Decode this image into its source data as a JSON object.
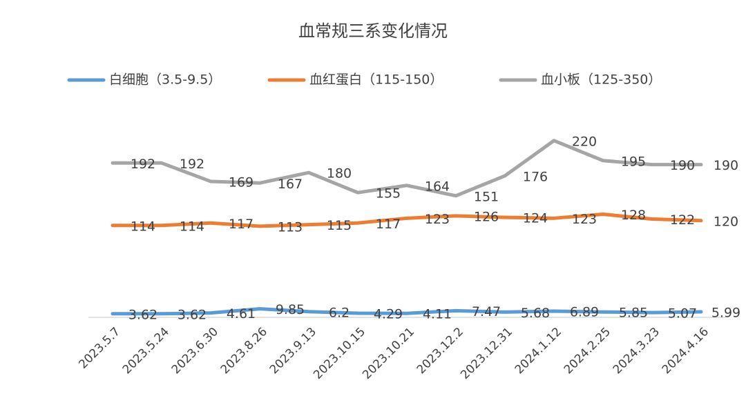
{
  "chart_data": {
    "type": "line",
    "title": "血常规三系变化情况",
    "categories": [
      "2023.5.7",
      "2023.5.24",
      "2023.6.30",
      "2023.8.26",
      "2023.9.13",
      "2023.10.15",
      "2023.10.21",
      "2023.12.2",
      "2023.12.31",
      "2024.1.12",
      "2024.2.25",
      "2024.3.23",
      "2024.4.16"
    ],
    "series": [
      {
        "name": "白细胞（3.5-9.5）",
        "color": "#5b9bd5",
        "values": [
          3.62,
          3.62,
          4.61,
          9.85,
          6.2,
          4.29,
          4.11,
          7.47,
          5.68,
          6.89,
          5.85,
          5.07,
          5.99
        ]
      },
      {
        "name": "血红蛋白（115-150）",
        "color": "#ed7d31",
        "values": [
          114,
          114,
          117,
          113,
          115,
          117,
          123,
          126,
          124,
          123,
          128,
          122,
          120
        ]
      },
      {
        "name": "血小板（125-350）",
        "color": "#a5a5a5",
        "values": [
          192,
          192,
          169,
          167,
          180,
          155,
          164,
          151,
          176,
          220,
          195,
          190,
          190
        ]
      }
    ],
    "ylim": [
      0,
      250
    ],
    "legend": "top"
  }
}
